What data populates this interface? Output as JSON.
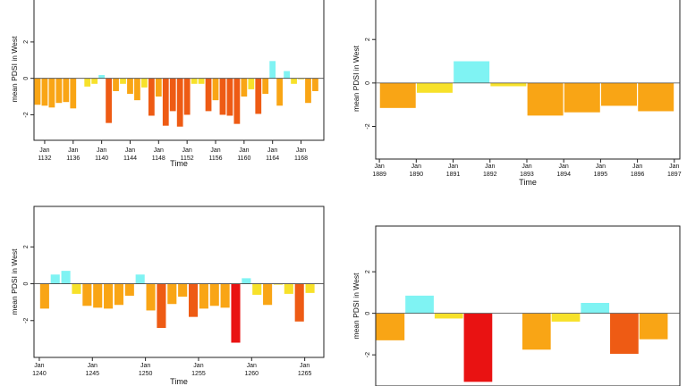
{
  "chart_data": [
    {
      "type": "bar",
      "ylabel": "mean PDSI in West",
      "xlabel": "Time",
      "ylim": [
        -3.4,
        4.4
      ],
      "yticks": [
        2,
        0,
        -2
      ],
      "x_start": 1130.5,
      "x_end": 1171.2,
      "xticks": [
        {
          "x": 1132,
          "label": [
            "Jan",
            "1132"
          ]
        },
        {
          "x": 1136,
          "label": [
            "Jan",
            "1136"
          ]
        },
        {
          "x": 1140,
          "label": [
            "Jan",
            "1140"
          ]
        },
        {
          "x": 1144,
          "label": [
            "Jan",
            "1144"
          ]
        },
        {
          "x": 1148,
          "label": [
            "Jan",
            "1148"
          ]
        },
        {
          "x": 1152,
          "label": [
            "Jan",
            "1152"
          ]
        },
        {
          "x": 1156,
          "label": [
            "Jan",
            "1156"
          ]
        },
        {
          "x": 1160,
          "label": [
            "Jan",
            "1160"
          ]
        },
        {
          "x": 1164,
          "label": [
            "Jan",
            "1164"
          ]
        },
        {
          "x": 1168,
          "label": [
            "Jan",
            "1168"
          ]
        }
      ],
      "bar_width": 0.85,
      "x": [
        1131,
        1132,
        1133,
        1134,
        1135,
        1136,
        1137,
        1138,
        1139,
        1140,
        1141,
        1142,
        1143,
        1144,
        1145,
        1146,
        1147,
        1148,
        1149,
        1150,
        1151,
        1152,
        1153,
        1154,
        1155,
        1156,
        1157,
        1158,
        1159,
        1160,
        1161,
        1162,
        1163,
        1164,
        1165,
        1166,
        1167,
        1168,
        1169,
        1170
      ],
      "values": [
        -1.45,
        -1.5,
        -1.6,
        -1.35,
        -1.3,
        -1.65,
        0.0,
        -0.45,
        -0.3,
        0.18,
        -2.45,
        -0.7,
        -0.3,
        -0.85,
        -1.2,
        -0.5,
        -2.05,
        -1.0,
        -2.6,
        -1.8,
        -2.65,
        -2.0,
        -0.3,
        -0.3,
        -1.8,
        -1.2,
        -2.0,
        -2.05,
        -2.5,
        -1.0,
        -0.6,
        -1.95,
        -0.85,
        0.95,
        -1.5,
        0.4,
        -0.3,
        -0.05,
        -1.35,
        -0.7
      ]
    },
    {
      "type": "bar",
      "ylabel": "mean PDSI in West",
      "xlabel": "Time",
      "ylim": [
        -3.5,
        3.9
      ],
      "yticks": [
        2,
        0,
        -2
      ],
      "x_start": 1888.9,
      "x_end": 1897.15,
      "xticks": [
        {
          "x": 1889,
          "label": [
            "Jan",
            "1889"
          ]
        },
        {
          "x": 1890,
          "label": [
            "Jan",
            "1890"
          ]
        },
        {
          "x": 1891,
          "label": [
            "Jan",
            "1891"
          ]
        },
        {
          "x": 1892,
          "label": [
            "Jan",
            "1892"
          ]
        },
        {
          "x": 1893,
          "label": [
            "Jan",
            "1893"
          ]
        },
        {
          "x": 1894,
          "label": [
            "Jan",
            "1894"
          ]
        },
        {
          "x": 1895,
          "label": [
            "Jan",
            "1895"
          ]
        },
        {
          "x": 1896,
          "label": [
            "Jan",
            "1896"
          ]
        },
        {
          "x": 1897,
          "label": [
            "Jan",
            "1897"
          ]
        }
      ],
      "bar_width": 0.97,
      "x": [
        1889.5,
        1890.5,
        1891.5,
        1892.5,
        1893.5,
        1894.5,
        1895.5,
        1896.5
      ],
      "values": [
        -1.15,
        -0.45,
        1.0,
        -0.15,
        -1.5,
        -1.35,
        -1.05,
        -1.3
      ]
    },
    {
      "type": "bar",
      "ylabel": "mean PDSI in West",
      "xlabel": "Time",
      "ylim": [
        -4.0,
        4.2
      ],
      "yticks": [
        2,
        0,
        -2
      ],
      "x_start": 1239.5,
      "x_end": 1266.8,
      "xticks": [
        {
          "x": 1240,
          "label": [
            "Jan",
            "1240"
          ]
        },
        {
          "x": 1245,
          "label": [
            "Jan",
            "1245"
          ]
        },
        {
          "x": 1250,
          "label": [
            "Jan",
            "1250"
          ]
        },
        {
          "x": 1255,
          "label": [
            "Jan",
            "1255"
          ]
        },
        {
          "x": 1260,
          "label": [
            "Jan",
            "1260"
          ]
        },
        {
          "x": 1265,
          "label": [
            "Jan",
            "1265"
          ]
        }
      ],
      "bar_width": 0.85,
      "x": [
        1240.5,
        1241.5,
        1242.5,
        1243.5,
        1244.5,
        1245.5,
        1246.5,
        1247.5,
        1248.5,
        1249.5,
        1250.5,
        1251.5,
        1252.5,
        1253.5,
        1254.5,
        1255.5,
        1256.5,
        1257.5,
        1258.5,
        1259.5,
        1260.5,
        1261.5,
        1262.5,
        1263.5,
        1264.5,
        1265.5
      ],
      "values": [
        -1.35,
        0.5,
        0.7,
        -0.55,
        -1.2,
        -1.3,
        -1.35,
        -1.15,
        -0.65,
        0.5,
        -1.45,
        -2.4,
        -1.1,
        -0.7,
        -1.8,
        -1.35,
        -1.2,
        -1.3,
        -3.2,
        0.3,
        -0.6,
        -1.15,
        -0.05,
        -0.55,
        -2.05,
        -0.5
      ]
    },
    {
      "type": "bar",
      "ylabel": "mean PDSI in West",
      "xlabel": "",
      "ylim": [
        -3.5,
        4.2
      ],
      "yticks": [
        2,
        0,
        -2
      ],
      "x_start": 0,
      "x_end": 10.4,
      "xticks": [],
      "bar_width": 0.97,
      "x": [
        0.5,
        1.5,
        2.5,
        3.5,
        4.5,
        5.5,
        6.5,
        7.5,
        8.5,
        9.5
      ],
      "values": [
        -1.3,
        0.85,
        -0.25,
        -3.3,
        0.0,
        -1.75,
        -0.4,
        0.5,
        -1.95,
        -1.25
      ]
    }
  ]
}
